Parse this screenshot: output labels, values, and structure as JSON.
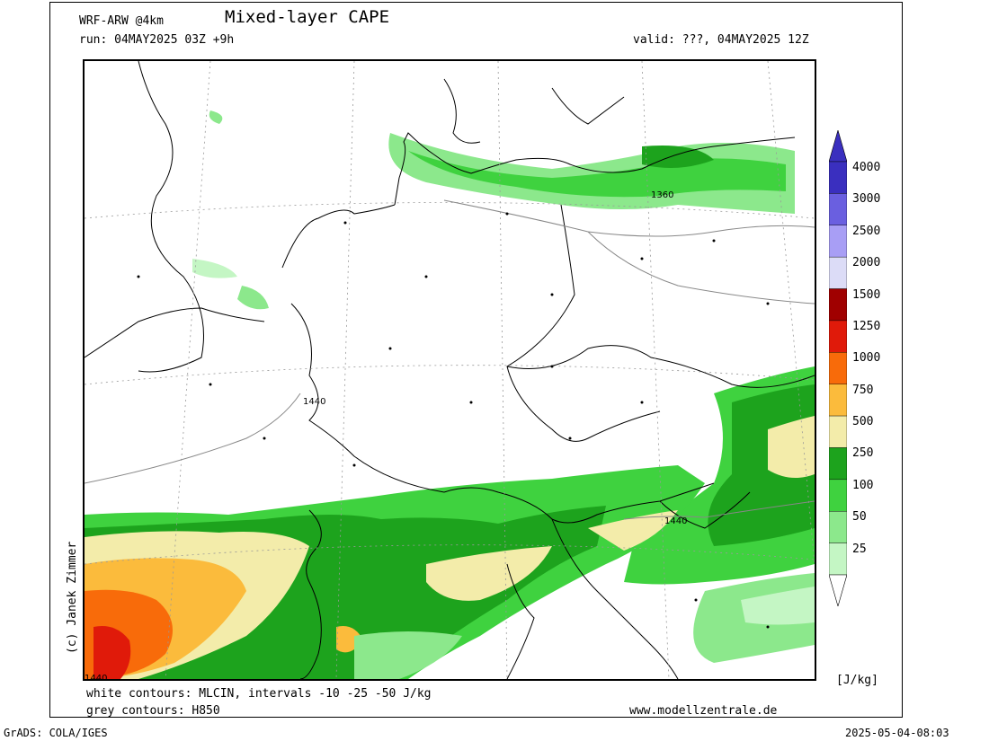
{
  "header": {
    "model": "WRF-ARW @4km",
    "title": "Mixed-layer CAPE",
    "run": "run: 04MAY2025 03Z +9h",
    "valid": "valid: ???, 04MAY2025 12Z"
  },
  "map": {
    "contour_labels": [
      "1360",
      "1440",
      "1440",
      "1440"
    ]
  },
  "colorbar": {
    "unit": "[J/kg]",
    "levels": [
      {
        "label": "4000",
        "color": "#3a2fbf"
      },
      {
        "label": "3000",
        "color": "#6a5fe0"
      },
      {
        "label": "2500",
        "color": "#a89ef5"
      },
      {
        "label": "2000",
        "color": "#dcdcf7"
      },
      {
        "label": "1500",
        "color": "#a00000"
      },
      {
        "label": "1250",
        "color": "#e01a0a"
      },
      {
        "label": "1000",
        "color": "#f86b0a"
      },
      {
        "label": "750",
        "color": "#fbbb3c"
      },
      {
        "label": "500",
        "color": "#f3ecaa"
      },
      {
        "label": "250",
        "color": "#1da31d"
      },
      {
        "label": "100",
        "color": "#3fd23f"
      },
      {
        "label": "50",
        "color": "#8ce88c"
      },
      {
        "label": "25",
        "color": "#c4f6c4"
      }
    ]
  },
  "footer": {
    "white_contours": "white contours: MLCIN, intervals -10 -25 -50 J/kg",
    "grey_contours": "grey contours: H850",
    "website": "www.modellzentrale.de",
    "grads": "GrADS: COLA/IGES",
    "timestamp": "2025-05-04-08:03",
    "credit": "(c) Janek Zimmer"
  }
}
